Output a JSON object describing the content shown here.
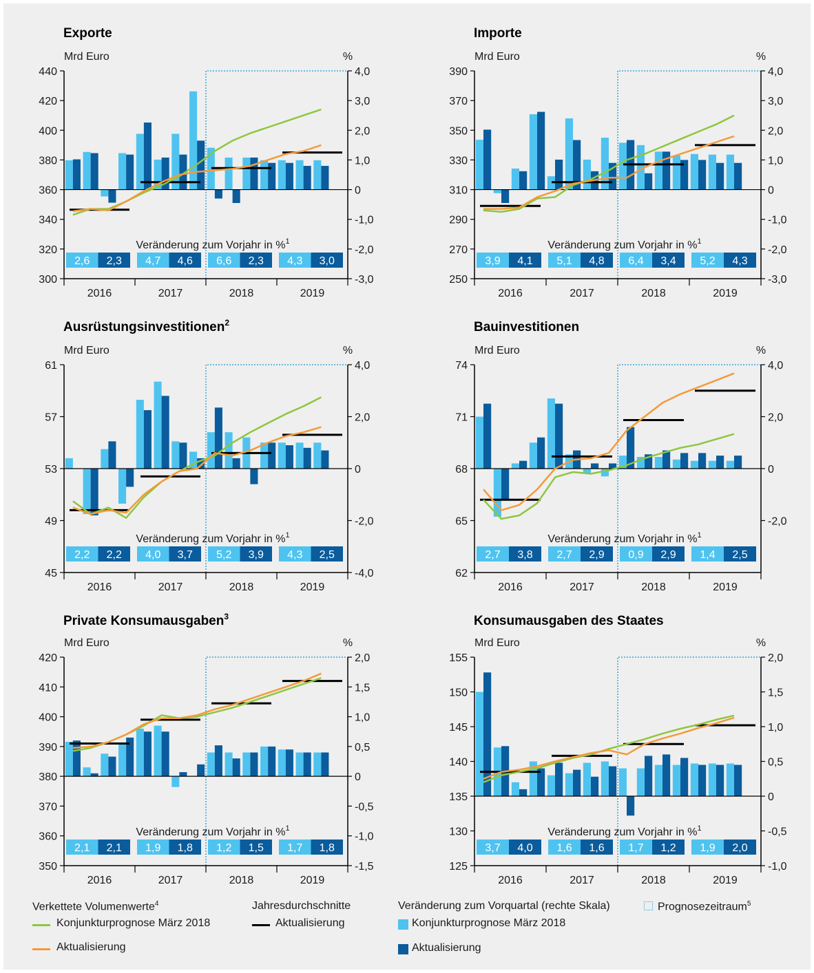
{
  "colors": {
    "line_march": "#8ec63f",
    "line_update": "#f39a3b",
    "bar_march": "#4fc3f0",
    "bar_update": "#0a5c9c",
    "annual_avg": "#000000",
    "forecast_box": "#3aa5d8"
  },
  "common": {
    "left_unit": "Mrd Euro",
    "right_unit": "%",
    "years": [
      "2016",
      "2017",
      "2018",
      "2019"
    ],
    "change_label": "Veränderung zum Vorjahr in %"
  },
  "chart_data": [
    {
      "id": "exporte",
      "type": "bar+line",
      "title": "Exporte",
      "title_sup": "",
      "left_axis": {
        "ticks": [
          "440",
          "420",
          "400",
          "380",
          "360",
          "340",
          "320",
          "300"
        ],
        "min": 300,
        "max": 440
      },
      "right_axis": {
        "ticks": [
          "4,0",
          "3,0",
          "2,0",
          "1,0",
          "0",
          "-1,0",
          "-2,0",
          "-3,0"
        ],
        "min": -3,
        "max": 4
      },
      "bars_march": [
        0.99,
        1.27,
        -0.23,
        1.23,
        1.88,
        1.01,
        1.88,
        3.31,
        1.41,
        1.08,
        1.08,
        0.99,
        0.99,
        0.99,
        0.99
      ],
      "bars_update": [
        1.02,
        1.23,
        -0.44,
        1.18,
        2.26,
        1.08,
        1.18,
        1.65,
        -0.3,
        -0.45,
        1.08,
        0.9,
        0.9,
        0.8,
        0.8
      ],
      "line_march": [
        343,
        347,
        347,
        352,
        358,
        363,
        369,
        377,
        386,
        393,
        398,
        402,
        406,
        410,
        414
      ],
      "line_update": [
        345.5,
        347,
        346,
        352,
        359,
        365,
        370,
        372,
        373,
        374,
        376,
        380,
        384,
        386,
        390
      ],
      "annual_avg": [
        346.5,
        365,
        374.5,
        385
      ],
      "change": [
        [
          "2,6",
          "2,3"
        ],
        [
          "4,7",
          "4,6"
        ],
        [
          "6,6",
          "2,3"
        ],
        [
          "4,3",
          "3,0"
        ]
      ]
    },
    {
      "id": "importe",
      "type": "bar+line",
      "title": "Importe",
      "title_sup": "",
      "left_axis": {
        "ticks": [
          "390",
          "370",
          "350",
          "330",
          "310",
          "290",
          "270",
          "250"
        ],
        "min": 250,
        "max": 390
      },
      "right_axis": {
        "ticks": [
          "4,0",
          "3,0",
          "2,0",
          "1,0",
          "0",
          "-1,0",
          "-2,0",
          "-3,0"
        ],
        "min": -3,
        "max": 4
      },
      "bars_march": [
        1.68,
        -0.12,
        0.71,
        2.54,
        0.45,
        2.4,
        1.01,
        1.75,
        1.58,
        1.5,
        1.28,
        1.15,
        1.2,
        1.18,
        1.18
      ],
      "bars_update": [
        2.02,
        -0.45,
        0.62,
        2.62,
        1.01,
        1.67,
        0.62,
        0.9,
        1.67,
        0.55,
        1.28,
        1.0,
        1.0,
        0.9,
        0.9
      ],
      "line_march": [
        296,
        295,
        297,
        304,
        305,
        313,
        317,
        323,
        330,
        334,
        339,
        344,
        349,
        354,
        360
      ],
      "line_update": [
        297,
        297,
        298,
        305,
        309,
        314,
        316,
        318,
        318,
        325,
        330,
        334,
        338,
        342,
        346
      ],
      "annual_avg": [
        299,
        315,
        327,
        340
      ],
      "change": [
        [
          "3,9",
          "4,1"
        ],
        [
          "5,1",
          "4,8"
        ],
        [
          "6,4",
          "3,4"
        ],
        [
          "5,2",
          "4,3"
        ]
      ]
    },
    {
      "id": "ausruestung",
      "type": "bar+line",
      "title": "Ausrüstungsinvestitionen",
      "title_sup": "2",
      "left_axis": {
        "ticks": [
          "61",
          "57",
          "53",
          "49",
          "45"
        ],
        "min": 45,
        "max": 61
      },
      "right_axis": {
        "ticks": [
          "4,0",
          "2,0",
          "0",
          "-2,0",
          "-4,0"
        ],
        "min": -4,
        "max": 4
      },
      "bars_march": [
        0.4,
        -1.75,
        0.75,
        -1.35,
        2.65,
        3.35,
        1.05,
        0.65,
        1.4,
        1.4,
        1.2,
        1.0,
        1.0,
        1.0,
        1.0
      ],
      "bars_update": [
        0.0,
        -1.8,
        1.05,
        -0.7,
        2.25,
        2.8,
        1.0,
        0.4,
        2.35,
        0.4,
        -0.6,
        1.0,
        0.9,
        0.8,
        0.7
      ],
      "line_march": [
        50.5,
        49.5,
        50,
        49.2,
        50.8,
        52,
        52.8,
        53.5,
        54,
        55,
        55.8,
        56.5,
        57.2,
        57.8,
        58.5
      ],
      "line_update": [
        50,
        49.5,
        49.8,
        49.6,
        51,
        52,
        52.8,
        53,
        54.2,
        54,
        54.4,
        55,
        55.5,
        55.8,
        56.2
      ],
      "annual_avg": [
        49.8,
        52.4,
        54.2,
        55.6
      ],
      "change": [
        [
          "2,2",
          "2,2"
        ],
        [
          "4,0",
          "3,7"
        ],
        [
          "5,2",
          "3,9"
        ],
        [
          "4,3",
          "2,5"
        ]
      ]
    },
    {
      "id": "bau",
      "type": "bar+line",
      "title": "Bauinvestitionen",
      "title_sup": "",
      "left_axis": {
        "ticks": [
          "74",
          "71",
          "68",
          "65",
          "62"
        ],
        "min": 62,
        "max": 74
      },
      "right_axis": {
        "ticks": [
          "4,0",
          "2,0",
          "0",
          "-2,0"
        ],
        "min": -4,
        "max": 4
      },
      "bars_march": [
        2.0,
        -1.85,
        0.2,
        1.0,
        2.7,
        0.55,
        -0.2,
        -0.3,
        0.5,
        0.45,
        0.45,
        0.35,
        0.3,
        0.3,
        0.3
      ],
      "bars_update": [
        2.5,
        -1.2,
        0.3,
        1.2,
        2.5,
        0.7,
        0.2,
        0.2,
        1.6,
        0.55,
        0.7,
        0.6,
        0.6,
        0.5,
        0.5
      ],
      "line_march": [
        66.2,
        65.1,
        65.3,
        66,
        67.5,
        67.8,
        67.7,
        67.9,
        68.2,
        68.6,
        68.9,
        69.2,
        69.4,
        69.7,
        70
      ],
      "line_update": [
        66.8,
        65.6,
        65.9,
        66.8,
        68,
        68.5,
        68.6,
        68.9,
        70.2,
        71,
        71.8,
        72.3,
        72.7,
        73.1,
        73.5
      ],
      "annual_avg": [
        66.2,
        68.7,
        70.8,
        72.5
      ],
      "change": [
        [
          "2,7",
          "3,8"
        ],
        [
          "2,7",
          "2,9"
        ],
        [
          "0,9",
          "2,9"
        ],
        [
          "1,4",
          "2,5"
        ]
      ]
    },
    {
      "id": "privat",
      "type": "bar+line",
      "title": "Private Konsumausgaben",
      "title_sup": "3",
      "left_axis": {
        "ticks": [
          "420",
          "410",
          "400",
          "390",
          "380",
          "370",
          "360",
          "350"
        ],
        "min": 350,
        "max": 420
      },
      "right_axis": {
        "ticks": [
          "2,0",
          "1,5",
          "1,0",
          "0,5",
          "0",
          "-0,5",
          "-1,0",
          "-1,5"
        ],
        "min": -1.5,
        "max": 2.0
      },
      "bars_march": [
        0.58,
        0.15,
        0.38,
        0.55,
        0.8,
        0.85,
        -0.18,
        0.0,
        0.4,
        0.4,
        0.4,
        0.5,
        0.45,
        0.4,
        0.4
      ],
      "bars_update": [
        0.6,
        0.05,
        0.33,
        0.65,
        0.75,
        0.75,
        0.07,
        0.2,
        0.52,
        0.3,
        0.4,
        0.5,
        0.45,
        0.4,
        0.4
      ],
      "line_march": [
        388.5,
        389.5,
        391.5,
        394,
        397,
        400.5,
        399.5,
        400,
        401.5,
        403,
        405,
        407,
        409,
        411,
        413
      ],
      "line_update": [
        389.5,
        390,
        391.5,
        394,
        397.5,
        399.5,
        399.5,
        400.5,
        402.5,
        404,
        406,
        408,
        410,
        412,
        414.5
      ],
      "annual_avg": [
        391,
        399,
        404.5,
        412
      ],
      "change": [
        [
          "2,1",
          "2,1"
        ],
        [
          "1,9",
          "1,8"
        ],
        [
          "1,2",
          "1,5"
        ],
        [
          "1,7",
          "1,8"
        ]
      ]
    },
    {
      "id": "staat",
      "type": "bar+line",
      "title": "Konsumausgaben des Staates",
      "title_sup": "",
      "left_axis": {
        "ticks": [
          "155",
          "150",
          "145",
          "140",
          "135",
          "130",
          "125"
        ],
        "min": 125,
        "max": 155
      },
      "right_axis": {
        "ticks": [
          "2,0",
          "1,5",
          "1,0",
          "0,5",
          "0",
          "-0,5",
          "-1,0"
        ],
        "min": -1.0,
        "max": 2.0
      },
      "bars_march": [
        1.5,
        0.7,
        0.2,
        0.5,
        0.3,
        0.33,
        0.48,
        0.5,
        0.4,
        0.4,
        0.45,
        0.45,
        0.47,
        0.47,
        0.47
      ],
      "bars_update": [
        1.78,
        0.72,
        0.1,
        0.4,
        0.48,
        0.38,
        0.28,
        0.43,
        -0.28,
        0.58,
        0.6,
        0.55,
        0.45,
        0.45,
        0.45
      ],
      "line_march": [
        137,
        138,
        138.5,
        139,
        139.8,
        140.5,
        141,
        141.8,
        142.5,
        143.2,
        144,
        144.7,
        145.3,
        146,
        146.6
      ],
      "line_update": [
        137.5,
        138.5,
        138.8,
        139.3,
        140,
        140.6,
        141.2,
        141.6,
        141,
        142.5,
        143.3,
        144,
        144.8,
        145.5,
        146.3
      ],
      "annual_avg": [
        138.5,
        140.8,
        142.5,
        145.2
      ],
      "change": [
        [
          "3,7",
          "4,0"
        ],
        [
          "1,6",
          "1,6"
        ],
        [
          "1,7",
          "1,2"
        ],
        [
          "1,9",
          "2,0"
        ]
      ]
    }
  ],
  "legend": {
    "volumes_title": "Verkettete Volumenwerte",
    "volumes_sup": "4",
    "march_label": "Konjunkturprognose März 2018",
    "update_label": "Aktualisierung",
    "annual_title": "Jahresdurchschnitte",
    "annual_update_label": "Aktualisierung",
    "qoq_title": "Veränderung zum Vorquartal (rechte Skala)",
    "bar_march_label": "Konjunkturprognose März 2018",
    "bar_update_label": "Aktualisierung",
    "forecast_label": "Prognosezeitraum",
    "forecast_sup": "5"
  }
}
